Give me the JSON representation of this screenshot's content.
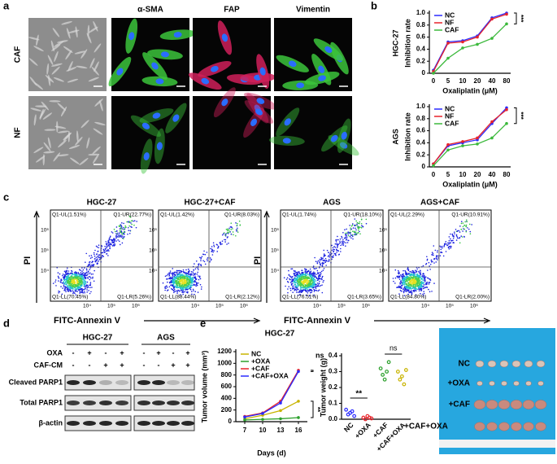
{
  "panel_labels": [
    "a",
    "b",
    "c",
    "d",
    "e"
  ],
  "panel_a": {
    "columns": [
      "α-SMA",
      "FAP",
      "Vimentin"
    ],
    "rows": [
      "CAF",
      "NF"
    ]
  },
  "chart_data": [
    {
      "type": "line",
      "title": "HGC-27",
      "xlabel": "Oxaliplatin (μM)",
      "ylabel": "Inhibition rate",
      "categories": [
        "0",
        "5",
        "10",
        "20",
        "40",
        "80"
      ],
      "ylim": [
        0,
        1
      ],
      "yticks": [
        0,
        0.2,
        0.4,
        0.6,
        0.8,
        {
          "value": 1,
          "label": "1.0"
        }
      ],
      "legend": "upper-left",
      "series": [
        {
          "name": "NC",
          "color": "#2b2bff",
          "values": [
            0.05,
            0.52,
            0.54,
            0.62,
            0.92,
            1.0
          ]
        },
        {
          "name": "NF",
          "color": "#e8232a",
          "values": [
            0.03,
            0.5,
            0.52,
            0.6,
            0.9,
            0.98
          ]
        },
        {
          "name": "CAF",
          "color": "#3cb93c",
          "values": [
            0.0,
            0.25,
            0.42,
            0.48,
            0.58,
            0.82
          ]
        }
      ],
      "annotations": [
        "***"
      ]
    },
    {
      "type": "line",
      "title": "AGS",
      "xlabel": "Oxaliplatin (μM)",
      "ylabel": "Inhibition rate",
      "categories": [
        "0",
        "5",
        "10",
        "20",
        "40",
        "80"
      ],
      "ylim": [
        0,
        1
      ],
      "yticks": [
        0,
        0.2,
        0.4,
        0.6,
        0.8,
        {
          "value": 1,
          "label": "1.0"
        }
      ],
      "legend": "upper-left",
      "series": [
        {
          "name": "NC",
          "color": "#2b2bff",
          "values": [
            0.05,
            0.35,
            0.4,
            0.45,
            0.72,
            0.98
          ]
        },
        {
          "name": "NF",
          "color": "#e8232a",
          "values": [
            0.05,
            0.37,
            0.42,
            0.48,
            0.75,
            0.95
          ]
        },
        {
          "name": "CAF",
          "color": "#3cb93c",
          "values": [
            0.02,
            0.28,
            0.35,
            0.38,
            0.48,
            0.72
          ]
        }
      ],
      "annotations": [
        "***"
      ]
    },
    {
      "type": "line",
      "title": "HGC-27",
      "xlabel": "Days (d)",
      "ylabel": "Tumor volume (mm³)",
      "x": [
        7,
        10,
        13,
        16
      ],
      "xlim": [
        5.5,
        17.5
      ],
      "xticks": [
        7,
        10,
        13,
        16
      ],
      "ylim": [
        0,
        1200
      ],
      "yticks": [
        0,
        200,
        400,
        600,
        800,
        1000,
        1200
      ],
      "legend": "upper-left",
      "series": [
        {
          "name": "NC",
          "color": "#c8b400",
          "values": [
            50,
            110,
            190,
            350
          ]
        },
        {
          "name": "+OXA",
          "color": "#2ca02c",
          "values": [
            30,
            40,
            50,
            70
          ]
        },
        {
          "name": "+CAF",
          "color": "#e8232a",
          "values": [
            90,
            150,
            350,
            880
          ]
        },
        {
          "name": "+CAF+OXA",
          "color": "#2b2bff",
          "values": [
            80,
            140,
            320,
            860
          ]
        }
      ],
      "annotations": [
        "ns",
        "**"
      ]
    },
    {
      "type": "dot",
      "ylabel": "Tumor weight (g)",
      "categories": [
        "NC",
        "+OXA",
        "+CAF",
        "+CAF+OXA"
      ],
      "values": [
        [
          0.06,
          0.03,
          0.04,
          0.05,
          0.02
        ],
        [
          0.01,
          0.0,
          0.02,
          0.01,
          0.005
        ],
        [
          0.32,
          0.28,
          0.25,
          0.3,
          0.36
        ],
        [
          0.3,
          0.25,
          0.27,
          0.22,
          0.31
        ]
      ],
      "colors": [
        "#2b2bff",
        "#e8232a",
        "#2ca02c",
        "#c8b400"
      ],
      "ylim": [
        0,
        0.4
      ],
      "yticks": [
        {
          "value": 0,
          "label": "0.0"
        },
        0.1,
        0.2,
        0.3,
        0.4
      ],
      "annotations": [
        "**",
        "ns"
      ]
    }
  ],
  "panel_c": {
    "x_label": "FITC-Annexin V",
    "y_label": "PI",
    "x_ticks": [
      "10⁴",
      "10⁵",
      "10⁶"
    ],
    "y_ticks": [
      "10⁴",
      "10⁵",
      "10⁶"
    ],
    "plots": [
      {
        "title": "HGC-27",
        "quadrants": [
          "Q1-UL(1.51%)",
          "Q1-UR(22.77%)",
          "Q1-LL(70.45%)",
          "Q1-LR(5.26%)"
        ]
      },
      {
        "title": "HGC-27+CAF",
        "quadrants": [
          "Q1-UL(1.42%)",
          "Q1-UR(8.03%)",
          "Q1-LL(88.44%)",
          "Q1-LR(2.12%)"
        ]
      },
      {
        "title": "AGS",
        "quadrants": [
          "Q1-UL(1.74%)",
          "Q1-UR(18.10%)",
          "Q1-LL(76.51%)",
          "Q1-LR(3.65%)"
        ]
      },
      {
        "title": "AGS+CAF",
        "quadrants": [
          "Q1-UL(2.29%)",
          "Q1-UR(10.91%)",
          "Q1-LL(84.80%)",
          "Q1-LR(2.00%)"
        ]
      }
    ]
  },
  "panel_d": {
    "groups": [
      "HGC-27",
      "AGS"
    ],
    "conditions": [
      {
        "name": "OXA",
        "marks": [
          "-",
          "+",
          "-",
          "+",
          "-",
          "+",
          "-",
          "+"
        ]
      },
      {
        "name": "CAF-CM",
        "marks": [
          "-",
          "-",
          "+",
          "+",
          "-",
          "-",
          "+",
          "+"
        ]
      }
    ],
    "bands": [
      "Cleaved PARP1",
      "Total PARP1",
      "β-actin"
    ]
  },
  "panel_e_photo": {
    "labels": [
      "NC",
      "+OXA",
      "+CAF",
      "+CAF+OXA"
    ]
  }
}
